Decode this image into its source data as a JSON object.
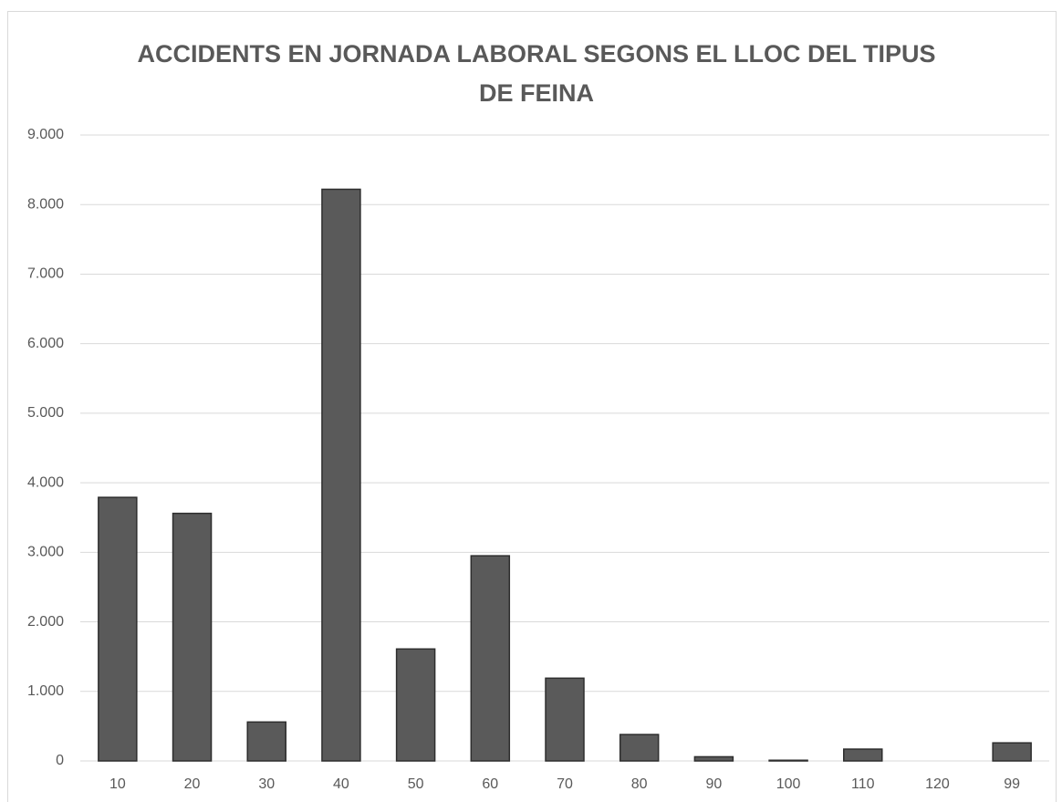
{
  "chart_data": {
    "type": "bar",
    "title": "ACCIDENTS EN JORNADA LABORAL SEGONS EL LLOC DEL TIPUS DE FEINA",
    "categories": [
      "10",
      "20",
      "30",
      "40",
      "50",
      "60",
      "70",
      "80",
      "90",
      "100",
      "110",
      "120",
      "99"
    ],
    "values": [
      3790,
      3560,
      560,
      8220,
      1610,
      2950,
      1190,
      380,
      60,
      10,
      170,
      0,
      260
    ],
    "color": "#5a5a5a",
    "ylim": [
      0,
      9000
    ],
    "yticks": [
      0,
      {
        "value": 1000,
        "label": "1.000"
      },
      {
        "value": 2000,
        "label": "2.000"
      },
      {
        "value": 3000,
        "label": "3.000"
      },
      {
        "value": 4000,
        "label": "4.000"
      },
      {
        "value": 5000,
        "label": "5.000"
      },
      {
        "value": 6000,
        "label": "6.000"
      },
      {
        "value": 7000,
        "label": "7.000"
      },
      {
        "value": 8000,
        "label": "8.000"
      },
      {
        "value": 9000,
        "label": "9.000"
      }
    ],
    "grid": true
  }
}
